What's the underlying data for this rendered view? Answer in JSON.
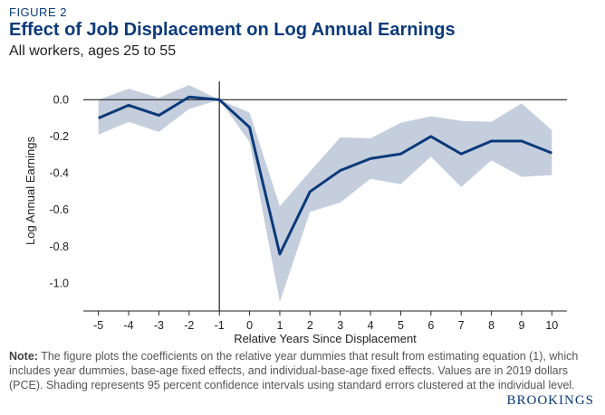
{
  "figure_label": "FIGURE 2",
  "title": "Effect of Job Displacement on Log Annual Earnings",
  "subtitle": "All workers, ages 25 to 55",
  "note_label": "Note:",
  "note_text": " The figure plots the coefficients on the relative year dummies that result from estimating equation (1), which includes year dummies, base-age fixed effects, and individual-base-age fixed effects. Values are in 2019 dollars (PCE). Shading represents 95 percent confidence intervals using standard errors clustered at the individual level.",
  "brand": "BROOKINGS",
  "colors": {
    "line": "#0a3a7a",
    "band": "#c5cedd",
    "title": "#0a3a7a"
  },
  "chart_data": {
    "type": "line",
    "xlabel": "Relative Years Since Displacement",
    "ylabel": "Log Annual Earnings",
    "xlim": [
      -5.5,
      10.5
    ],
    "ylim": [
      -1.15,
      0.1
    ],
    "x_ticks": [
      -5,
      -4,
      -3,
      -2,
      -1,
      0,
      1,
      2,
      3,
      4,
      5,
      6,
      7,
      8,
      9,
      10
    ],
    "y_ticks": [
      0.0,
      -0.2,
      -0.4,
      -0.6,
      -0.8,
      -1.0
    ],
    "y_tick_labels": [
      "0.0",
      "-0.2",
      "-0.4",
      "-0.6",
      "-0.8",
      "-1.0"
    ],
    "reference_lines": {
      "y": 0,
      "x": -1
    },
    "grid": false,
    "x": [
      -5,
      -4,
      -3,
      -2,
      -1,
      0,
      1,
      2,
      3,
      4,
      5,
      6,
      7,
      8,
      9,
      10
    ],
    "series": [
      {
        "values": [
          -0.1,
          -0.03,
          -0.085,
          0.015,
          0.0,
          -0.15,
          -0.84,
          -0.5,
          -0.385,
          -0.32,
          -0.295,
          -0.2,
          -0.295,
          -0.225,
          -0.225,
          -0.29
        ],
        "ci_upper": [
          0.0,
          0.06,
          0.01,
          0.08,
          0.0,
          -0.07,
          -0.58,
          -0.39,
          -0.205,
          -0.21,
          -0.125,
          -0.09,
          -0.115,
          -0.12,
          -0.02,
          -0.165
        ],
        "ci_lower": [
          -0.19,
          -0.12,
          -0.175,
          -0.05,
          0.0,
          -0.23,
          -1.1,
          -0.61,
          -0.56,
          -0.43,
          -0.46,
          -0.31,
          -0.475,
          -0.33,
          -0.42,
          -0.41
        ]
      }
    ]
  }
}
